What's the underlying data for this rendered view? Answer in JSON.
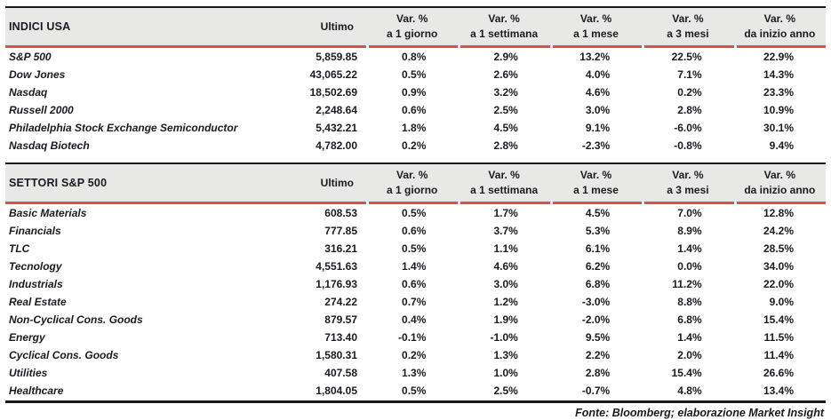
{
  "colors": {
    "accent_red": "#d9533f",
    "header_bg": "#e8e8e6",
    "text": "#1a1a22",
    "border_dark": "#18181c"
  },
  "header": {
    "ultimo": "Ultimo",
    "var_label": "Var. %",
    "periods": [
      "a 1 giorno",
      "a 1 settimana",
      "a 1 mese",
      "a 3 mesi",
      "da inizio anno"
    ]
  },
  "chart_data": [
    {
      "type": "table",
      "title": "INDICI USA",
      "columns": [
        "",
        "Ultimo",
        "Var. % a 1 giorno",
        "Var. % a 1 settimana",
        "Var. % a 1 mese",
        "Var. % a 3 mesi",
        "Var. % da inizio anno"
      ],
      "rows": [
        {
          "name": "S&P 500",
          "ultimo": "5,859.85",
          "var_pct": [
            "0.8%",
            "2.9%",
            "13.2%",
            "22.5%",
            "22.9%"
          ]
        },
        {
          "name": "Dow Jones",
          "ultimo": "43,065.22",
          "var_pct": [
            "0.5%",
            "2.6%",
            "4.0%",
            "7.1%",
            "14.3%"
          ]
        },
        {
          "name": "Nasdaq",
          "ultimo": "18,502.69",
          "var_pct": [
            "0.9%",
            "3.2%",
            "4.6%",
            "0.2%",
            "23.3%"
          ]
        },
        {
          "name": "Russell 2000",
          "ultimo": "2,248.64",
          "var_pct": [
            "0.6%",
            "2.5%",
            "3.0%",
            "2.8%",
            "10.9%"
          ]
        },
        {
          "name": "Philadelphia Stock Exchange Semiconductor",
          "ultimo": "5,432.21",
          "var_pct": [
            "1.8%",
            "4.5%",
            "9.1%",
            "-6.0%",
            "30.1%"
          ]
        },
        {
          "name": "Nasdaq Biotech",
          "ultimo": "4,782.00",
          "var_pct": [
            "0.2%",
            "2.8%",
            "-2.3%",
            "-0.8%",
            "9.4%"
          ]
        }
      ]
    },
    {
      "type": "table",
      "title": "SETTORI S&P 500",
      "columns": [
        "",
        "Ultimo",
        "Var. % a 1 giorno",
        "Var. % a 1 settimana",
        "Var. % a 1 mese",
        "Var. % a 3 mesi",
        "Var. % da inizio anno"
      ],
      "rows": [
        {
          "name": "Basic Materials",
          "ultimo": "608.53",
          "var_pct": [
            "0.5%",
            "1.7%",
            "4.5%",
            "7.0%",
            "12.8%"
          ]
        },
        {
          "name": "Financials",
          "ultimo": "777.85",
          "var_pct": [
            "0.6%",
            "3.7%",
            "5.3%",
            "8.9%",
            "24.2%"
          ]
        },
        {
          "name": "TLC",
          "ultimo": "316.21",
          "var_pct": [
            "0.5%",
            "1.1%",
            "6.1%",
            "1.4%",
            "28.5%"
          ]
        },
        {
          "name": "Tecnology",
          "ultimo": "4,551.63",
          "var_pct": [
            "1.4%",
            "4.6%",
            "6.2%",
            "0.0%",
            "34.0%"
          ]
        },
        {
          "name": "Industrials",
          "ultimo": "1,176.93",
          "var_pct": [
            "0.6%",
            "3.0%",
            "6.8%",
            "11.2%",
            "22.0%"
          ]
        },
        {
          "name": "Real Estate",
          "ultimo": "274.22",
          "var_pct": [
            "0.7%",
            "1.2%",
            "-3.0%",
            "8.8%",
            "9.0%"
          ]
        },
        {
          "name": "Non-Cyclical Cons. Goods",
          "ultimo": "879.57",
          "var_pct": [
            "0.4%",
            "1.9%",
            "-2.0%",
            "6.8%",
            "15.4%"
          ]
        },
        {
          "name": "Energy",
          "ultimo": "713.40",
          "var_pct": [
            "-0.1%",
            "-1.0%",
            "9.5%",
            "1.4%",
            "11.5%"
          ]
        },
        {
          "name": "Cyclical Cons. Goods",
          "ultimo": "1,580.31",
          "var_pct": [
            "0.2%",
            "1.3%",
            "2.2%",
            "2.0%",
            "11.4%"
          ]
        },
        {
          "name": "Utilities",
          "ultimo": "407.58",
          "var_pct": [
            "1.3%",
            "1.0%",
            "2.8%",
            "15.4%",
            "26.6%"
          ]
        },
        {
          "name": "Healthcare",
          "ultimo": "1,804.05",
          "var_pct": [
            "0.5%",
            "2.5%",
            "-0.7%",
            "4.8%",
            "13.4%"
          ]
        }
      ]
    }
  ],
  "footer": {
    "source": "Fonte: Bloomberg; elaborazione Market Insight"
  }
}
